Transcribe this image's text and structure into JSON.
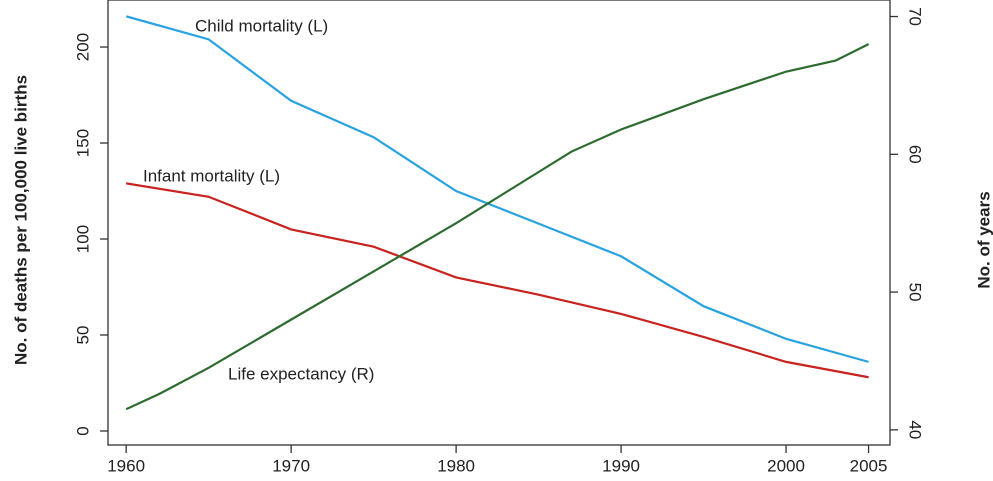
{
  "chart_data": {
    "type": "line",
    "ylabel": "No. of deaths per 100,000 live births",
    "y2label": "No. of years",
    "annotations": [
      "Child mortality (L)",
      "Infant mortality (L)",
      "Life expectancy (R)"
    ],
    "xlim": [
      1958.9,
      2006.3
    ],
    "xticks": [
      1960,
      1970,
      1980,
      1990,
      2000,
      2005
    ],
    "ylim": [
      -7.3,
      224.5
    ],
    "yticks": [
      0,
      50,
      100,
      150,
      200
    ],
    "y2lim": [
      38.9,
      71.2
    ],
    "y2ticks": [
      40,
      50,
      60,
      70
    ],
    "series": [
      {
        "name": "Child mortality (L)",
        "color": "#29a3e0",
        "x": [
          1960,
          1965,
          1970,
          1975,
          1980,
          1985,
          1990,
          1995,
          2000,
          2005
        ],
        "values": [
          216,
          204,
          172,
          153,
          125,
          108,
          91,
          65,
          48,
          36
        ]
      },
      {
        "name": "Infant mortality (L)",
        "color": "#c8231f",
        "x": [
          1960,
          1965,
          1970,
          1975,
          1980,
          1985,
          1990,
          1995,
          2000,
          2005
        ],
        "values": [
          129,
          122,
          105,
          96,
          80,
          71,
          61,
          49,
          36,
          28
        ]
      },
      {
        "name": "Life expectancy (R)",
        "color": "#2e6b30",
        "axis": "y2",
        "x": [
          1960,
          1962,
          1965,
          1970,
          1975,
          1980,
          1987,
          1990,
          1995,
          2000,
          2003,
          2005
        ],
        "values": [
          41.5,
          42.6,
          44.5,
          48,
          51.5,
          55,
          60.2,
          61.8,
          64,
          66,
          66.8,
          68
        ]
      }
    ]
  }
}
